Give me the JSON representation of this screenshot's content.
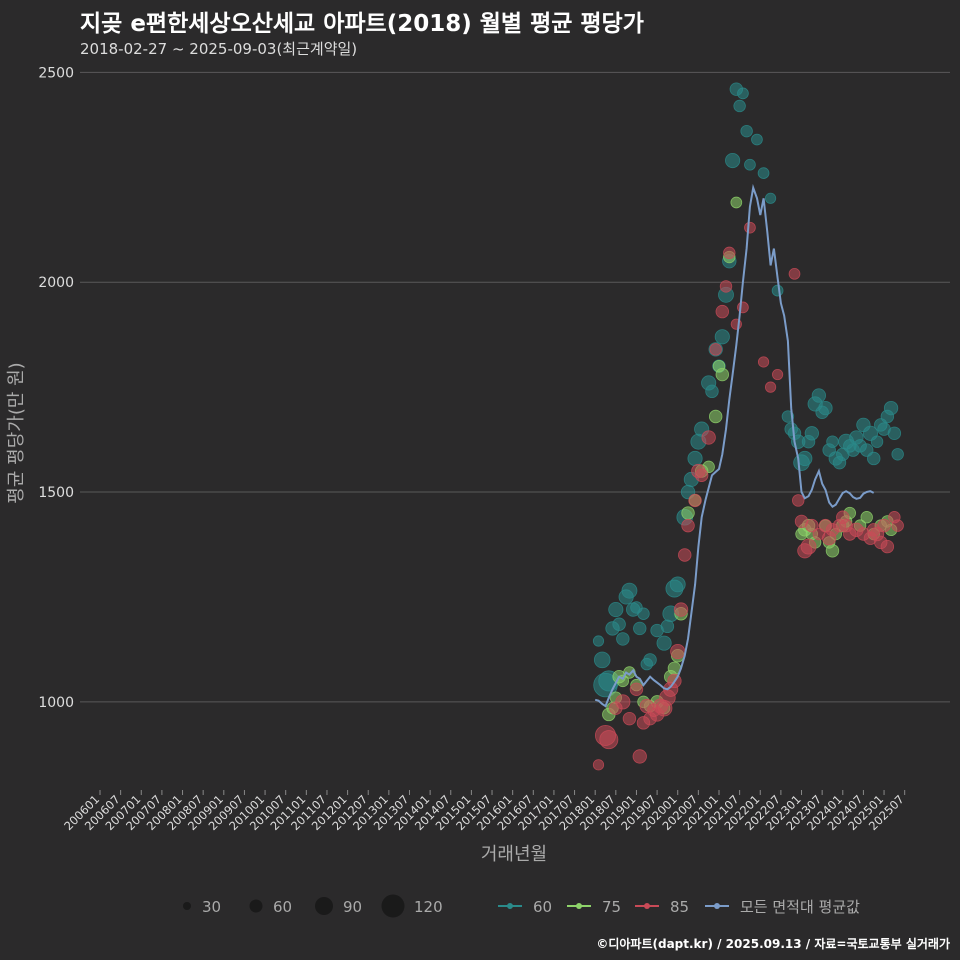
{
  "title": "지곶 e편한세상오산세교 아파트(2018) 월별 평균 평당가",
  "subtitle": "2018-02-27 ~ 2025-09-03(최근계약일)",
  "caption": "©디아파트(dapt.kr) / 2025.09.13 / 자료=국토교통부 실거래가",
  "colors": {
    "s60": "#2a8a8a",
    "s75": "#8ed36a",
    "s85": "#c94a57",
    "avg": "#7b9cc9",
    "grid": "#5a595a",
    "text": "#dddddd"
  },
  "chart_data": {
    "type": "scatter+line",
    "xlabel": "거래년월",
    "ylabel": "평균 평당가(만 원)",
    "ylim": [
      790,
      2520
    ],
    "yticks": [
      1000,
      1500,
      2000,
      2500
    ],
    "xlim": [
      2006.0,
      2025.75
    ],
    "xticks": [
      "200601",
      "200607",
      "200701",
      "200707",
      "200801",
      "200807",
      "200901",
      "200907",
      "201001",
      "201007",
      "201101",
      "201107",
      "201201",
      "201207",
      "201301",
      "201307",
      "201401",
      "201407",
      "201501",
      "201507",
      "201601",
      "201607",
      "201701",
      "201707",
      "201801",
      "201807",
      "201901",
      "201907",
      "202001",
      "202007",
      "202101",
      "202107",
      "202201",
      "202207",
      "202301",
      "202307",
      "202401",
      "202407",
      "202501",
      "202507"
    ],
    "size_legend": [
      30,
      60,
      90,
      120
    ],
    "series_legend": [
      "60",
      "75",
      "85",
      "모든 면적대 평균값"
    ],
    "avg_line": [
      [
        2018.0,
        1005
      ],
      [
        2018.08,
        1003
      ],
      [
        2018.17,
        995
      ],
      [
        2018.25,
        990
      ],
      [
        2018.33,
        1010
      ],
      [
        2018.42,
        1030
      ],
      [
        2018.5,
        1045
      ],
      [
        2018.58,
        1060
      ],
      [
        2018.67,
        1055
      ],
      [
        2018.75,
        1070
      ],
      [
        2018.83,
        1065
      ],
      [
        2018.92,
        1075
      ],
      [
        2019.0,
        1060
      ],
      [
        2019.08,
        1055
      ],
      [
        2019.17,
        1040
      ],
      [
        2019.25,
        1050
      ],
      [
        2019.33,
        1060
      ],
      [
        2019.42,
        1052
      ],
      [
        2019.5,
        1046
      ],
      [
        2019.58,
        1040
      ],
      [
        2019.67,
        1032
      ],
      [
        2019.75,
        1030
      ],
      [
        2019.83,
        1036
      ],
      [
        2019.92,
        1048
      ],
      [
        2020.0,
        1060
      ],
      [
        2020.08,
        1080
      ],
      [
        2020.17,
        1110
      ],
      [
        2020.25,
        1150
      ],
      [
        2020.33,
        1210
      ],
      [
        2020.42,
        1280
      ],
      [
        2020.5,
        1370
      ],
      [
        2020.58,
        1440
      ],
      [
        2020.67,
        1480
      ],
      [
        2020.75,
        1510
      ],
      [
        2020.83,
        1540
      ],
      [
        2020.92,
        1548
      ],
      [
        2021.0,
        1555
      ],
      [
        2021.08,
        1590
      ],
      [
        2021.17,
        1650
      ],
      [
        2021.25,
        1720
      ],
      [
        2021.33,
        1780
      ],
      [
        2021.42,
        1850
      ],
      [
        2021.5,
        1920
      ],
      [
        2021.58,
        2000
      ],
      [
        2021.67,
        2080
      ],
      [
        2021.75,
        2180
      ],
      [
        2021.83,
        2225
      ],
      [
        2021.92,
        2200
      ],
      [
        2022.0,
        2160
      ],
      [
        2022.08,
        2200
      ],
      [
        2022.17,
        2120
      ],
      [
        2022.25,
        2040
      ],
      [
        2022.33,
        2080
      ],
      [
        2022.42,
        2010
      ],
      [
        2022.5,
        1950
      ],
      [
        2022.58,
        1920
      ],
      [
        2022.67,
        1860
      ],
      [
        2022.75,
        1700
      ],
      [
        2022.83,
        1620
      ],
      [
        2022.92,
        1580
      ],
      [
        2023.0,
        1500
      ],
      [
        2023.08,
        1485
      ],
      [
        2023.17,
        1490
      ],
      [
        2023.25,
        1505
      ],
      [
        2023.33,
        1530
      ],
      [
        2023.42,
        1550
      ],
      [
        2023.5,
        1520
      ],
      [
        2023.58,
        1505
      ],
      [
        2023.67,
        1475
      ],
      [
        2023.75,
        1465
      ],
      [
        2023.83,
        1470
      ],
      [
        2023.92,
        1485
      ],
      [
        2024.0,
        1498
      ],
      [
        2024.08,
        1502
      ],
      [
        2024.17,
        1497
      ],
      [
        2024.25,
        1488
      ],
      [
        2024.33,
        1484
      ],
      [
        2024.42,
        1486
      ],
      [
        2024.5,
        1496
      ],
      [
        2024.58,
        1500
      ],
      [
        2024.67,
        1502
      ],
      [
        2024.75,
        1498
      ]
    ],
    "series": [
      {
        "name": "60",
        "points": [
          [
            2018.08,
            1145,
            10
          ],
          [
            2018.17,
            1100,
            40
          ],
          [
            2018.25,
            1040,
            120
          ],
          [
            2018.33,
            1050,
            80
          ],
          [
            2018.42,
            1175,
            25
          ],
          [
            2018.5,
            1220,
            30
          ],
          [
            2018.58,
            1185,
            20
          ],
          [
            2018.67,
            1150,
            20
          ],
          [
            2018.75,
            1250,
            30
          ],
          [
            2018.83,
            1265,
            35
          ],
          [
            2018.92,
            1220,
            25
          ],
          [
            2019.0,
            1225,
            15
          ],
          [
            2019.08,
            1175,
            20
          ],
          [
            2019.17,
            1210,
            15
          ],
          [
            2019.25,
            1090,
            15
          ],
          [
            2019.33,
            1100,
            20
          ],
          [
            2019.5,
            1170,
            20
          ],
          [
            2019.67,
            1140,
            30
          ],
          [
            2019.75,
            1180,
            20
          ],
          [
            2019.83,
            1210,
            40
          ],
          [
            2019.92,
            1270,
            50
          ],
          [
            2020.0,
            1280,
            35
          ],
          [
            2020.17,
            1440,
            40
          ],
          [
            2020.25,
            1500,
            25
          ],
          [
            2020.33,
            1530,
            30
          ],
          [
            2020.42,
            1580,
            30
          ],
          [
            2020.5,
            1620,
            35
          ],
          [
            2020.58,
            1650,
            30
          ],
          [
            2020.75,
            1760,
            30
          ],
          [
            2020.83,
            1740,
            20
          ],
          [
            2020.92,
            1840,
            25
          ],
          [
            2021.0,
            1800,
            20
          ],
          [
            2021.08,
            1870,
            30
          ],
          [
            2021.17,
            1970,
            35
          ],
          [
            2021.25,
            2050,
            25
          ],
          [
            2021.33,
            2290,
            30
          ],
          [
            2021.42,
            2460,
            20
          ],
          [
            2021.5,
            2420,
            15
          ],
          [
            2021.58,
            2450,
            12
          ],
          [
            2021.67,
            2360,
            15
          ],
          [
            2021.75,
            2280,
            12
          ],
          [
            2021.92,
            2340,
            12
          ],
          [
            2022.08,
            2260,
            12
          ],
          [
            2022.25,
            2200,
            10
          ],
          [
            2022.42,
            1980,
            12
          ],
          [
            2022.67,
            1680,
            15
          ],
          [
            2022.75,
            1650,
            20
          ],
          [
            2022.83,
            1640,
            20
          ],
          [
            2022.92,
            1620,
            25
          ],
          [
            2023.0,
            1570,
            40
          ],
          [
            2023.08,
            1580,
            30
          ],
          [
            2023.17,
            1620,
            20
          ],
          [
            2023.25,
            1640,
            25
          ],
          [
            2023.33,
            1710,
            30
          ],
          [
            2023.42,
            1730,
            25
          ],
          [
            2023.5,
            1690,
            20
          ],
          [
            2023.58,
            1700,
            25
          ],
          [
            2023.67,
            1600,
            20
          ],
          [
            2023.75,
            1620,
            15
          ],
          [
            2023.83,
            1580,
            25
          ],
          [
            2023.92,
            1570,
            20
          ],
          [
            2024.0,
            1590,
            20
          ],
          [
            2024.08,
            1620,
            35
          ],
          [
            2024.17,
            1610,
            20
          ],
          [
            2024.25,
            1600,
            20
          ],
          [
            2024.33,
            1630,
            25
          ],
          [
            2024.42,
            1610,
            20
          ],
          [
            2024.5,
            1660,
            25
          ],
          [
            2024.58,
            1600,
            20
          ],
          [
            2024.67,
            1640,
            30
          ],
          [
            2024.75,
            1580,
            20
          ],
          [
            2024.83,
            1620,
            15
          ],
          [
            2024.92,
            1660,
            20
          ],
          [
            2025.0,
            1650,
            20
          ],
          [
            2025.08,
            1680,
            20
          ],
          [
            2025.17,
            1700,
            25
          ],
          [
            2025.25,
            1640,
            20
          ],
          [
            2025.33,
            1590,
            15
          ]
        ]
      },
      {
        "name": "75",
        "points": [
          [
            2018.33,
            970,
            20
          ],
          [
            2018.42,
            985,
            15
          ],
          [
            2018.5,
            1010,
            15
          ],
          [
            2018.58,
            1060,
            20
          ],
          [
            2018.67,
            1050,
            15
          ],
          [
            2018.83,
            1070,
            15
          ],
          [
            2019.0,
            1040,
            15
          ],
          [
            2019.17,
            1000,
            15
          ],
          [
            2019.33,
            990,
            15
          ],
          [
            2019.5,
            1000,
            20
          ],
          [
            2019.67,
            985,
            15
          ],
          [
            2019.83,
            1060,
            20
          ],
          [
            2019.92,
            1080,
            20
          ],
          [
            2020.0,
            1110,
            20
          ],
          [
            2020.08,
            1210,
            20
          ],
          [
            2020.25,
            1450,
            20
          ],
          [
            2020.42,
            1480,
            15
          ],
          [
            2020.58,
            1550,
            20
          ],
          [
            2020.75,
            1560,
            15
          ],
          [
            2020.92,
            1680,
            20
          ],
          [
            2021.0,
            1800,
            15
          ],
          [
            2021.08,
            1780,
            20
          ],
          [
            2021.25,
            2060,
            15
          ],
          [
            2021.42,
            2190,
            12
          ],
          [
            2023.0,
            1400,
            15
          ],
          [
            2023.08,
            1410,
            20
          ],
          [
            2023.17,
            1420,
            20
          ],
          [
            2023.25,
            1400,
            15
          ],
          [
            2023.33,
            1380,
            15
          ],
          [
            2023.58,
            1420,
            15
          ],
          [
            2023.67,
            1380,
            15
          ],
          [
            2023.75,
            1360,
            20
          ],
          [
            2023.83,
            1400,
            15
          ],
          [
            2024.0,
            1420,
            20
          ],
          [
            2024.08,
            1430,
            15
          ],
          [
            2024.17,
            1450,
            15
          ],
          [
            2024.42,
            1420,
            15
          ],
          [
            2024.58,
            1440,
            15
          ],
          [
            2024.75,
            1400,
            15
          ],
          [
            2024.92,
            1420,
            15
          ],
          [
            2025.08,
            1430,
            15
          ],
          [
            2025.17,
            1410,
            15
          ]
        ]
      },
      {
        "name": "85",
        "points": [
          [
            2018.08,
            850,
            10
          ],
          [
            2018.25,
            920,
            80
          ],
          [
            2018.33,
            910,
            60
          ],
          [
            2018.5,
            985,
            20
          ],
          [
            2018.67,
            1000,
            30
          ],
          [
            2018.83,
            960,
            20
          ],
          [
            2019.0,
            1030,
            20
          ],
          [
            2019.08,
            870,
            25
          ],
          [
            2019.17,
            950,
            20
          ],
          [
            2019.25,
            990,
            25
          ],
          [
            2019.33,
            960,
            20
          ],
          [
            2019.42,
            980,
            20
          ],
          [
            2019.5,
            970,
            25
          ],
          [
            2019.58,
            990,
            30
          ],
          [
            2019.67,
            985,
            40
          ],
          [
            2019.75,
            1010,
            40
          ],
          [
            2019.83,
            1030,
            30
          ],
          [
            2019.92,
            1050,
            25
          ],
          [
            2020.0,
            1120,
            30
          ],
          [
            2020.08,
            1220,
            25
          ],
          [
            2020.17,
            1350,
            20
          ],
          [
            2020.25,
            1420,
            20
          ],
          [
            2020.42,
            1480,
            20
          ],
          [
            2020.5,
            1550,
            25
          ],
          [
            2020.58,
            1540,
            20
          ],
          [
            2020.75,
            1630,
            25
          ],
          [
            2020.92,
            1840,
            15
          ],
          [
            2021.08,
            1930,
            20
          ],
          [
            2021.17,
            1990,
            15
          ],
          [
            2021.25,
            2070,
            15
          ],
          [
            2021.42,
            1900,
            10
          ],
          [
            2021.58,
            1940,
            12
          ],
          [
            2021.75,
            2130,
            12
          ],
          [
            2022.08,
            1810,
            10
          ],
          [
            2022.25,
            1750,
            10
          ],
          [
            2022.42,
            1780,
            10
          ],
          [
            2022.83,
            2020,
            12
          ],
          [
            2022.92,
            1480,
            15
          ],
          [
            2023.0,
            1430,
            20
          ],
          [
            2023.08,
            1360,
            30
          ],
          [
            2023.17,
            1370,
            35
          ],
          [
            2023.25,
            1420,
            20
          ],
          [
            2023.42,
            1400,
            15
          ],
          [
            2023.58,
            1420,
            20
          ],
          [
            2023.67,
            1390,
            25
          ],
          [
            2023.75,
            1410,
            20
          ],
          [
            2023.92,
            1420,
            20
          ],
          [
            2024.0,
            1440,
            20
          ],
          [
            2024.08,
            1420,
            20
          ],
          [
            2024.17,
            1400,
            20
          ],
          [
            2024.33,
            1410,
            25
          ],
          [
            2024.5,
            1400,
            20
          ],
          [
            2024.67,
            1390,
            20
          ],
          [
            2024.75,
            1410,
            20
          ],
          [
            2024.83,
            1400,
            25
          ],
          [
            2024.92,
            1380,
            20
          ],
          [
            2025.0,
            1420,
            20
          ],
          [
            2025.08,
            1370,
            20
          ],
          [
            2025.25,
            1440,
            15
          ],
          [
            2025.33,
            1420,
            15
          ]
        ]
      }
    ]
  }
}
